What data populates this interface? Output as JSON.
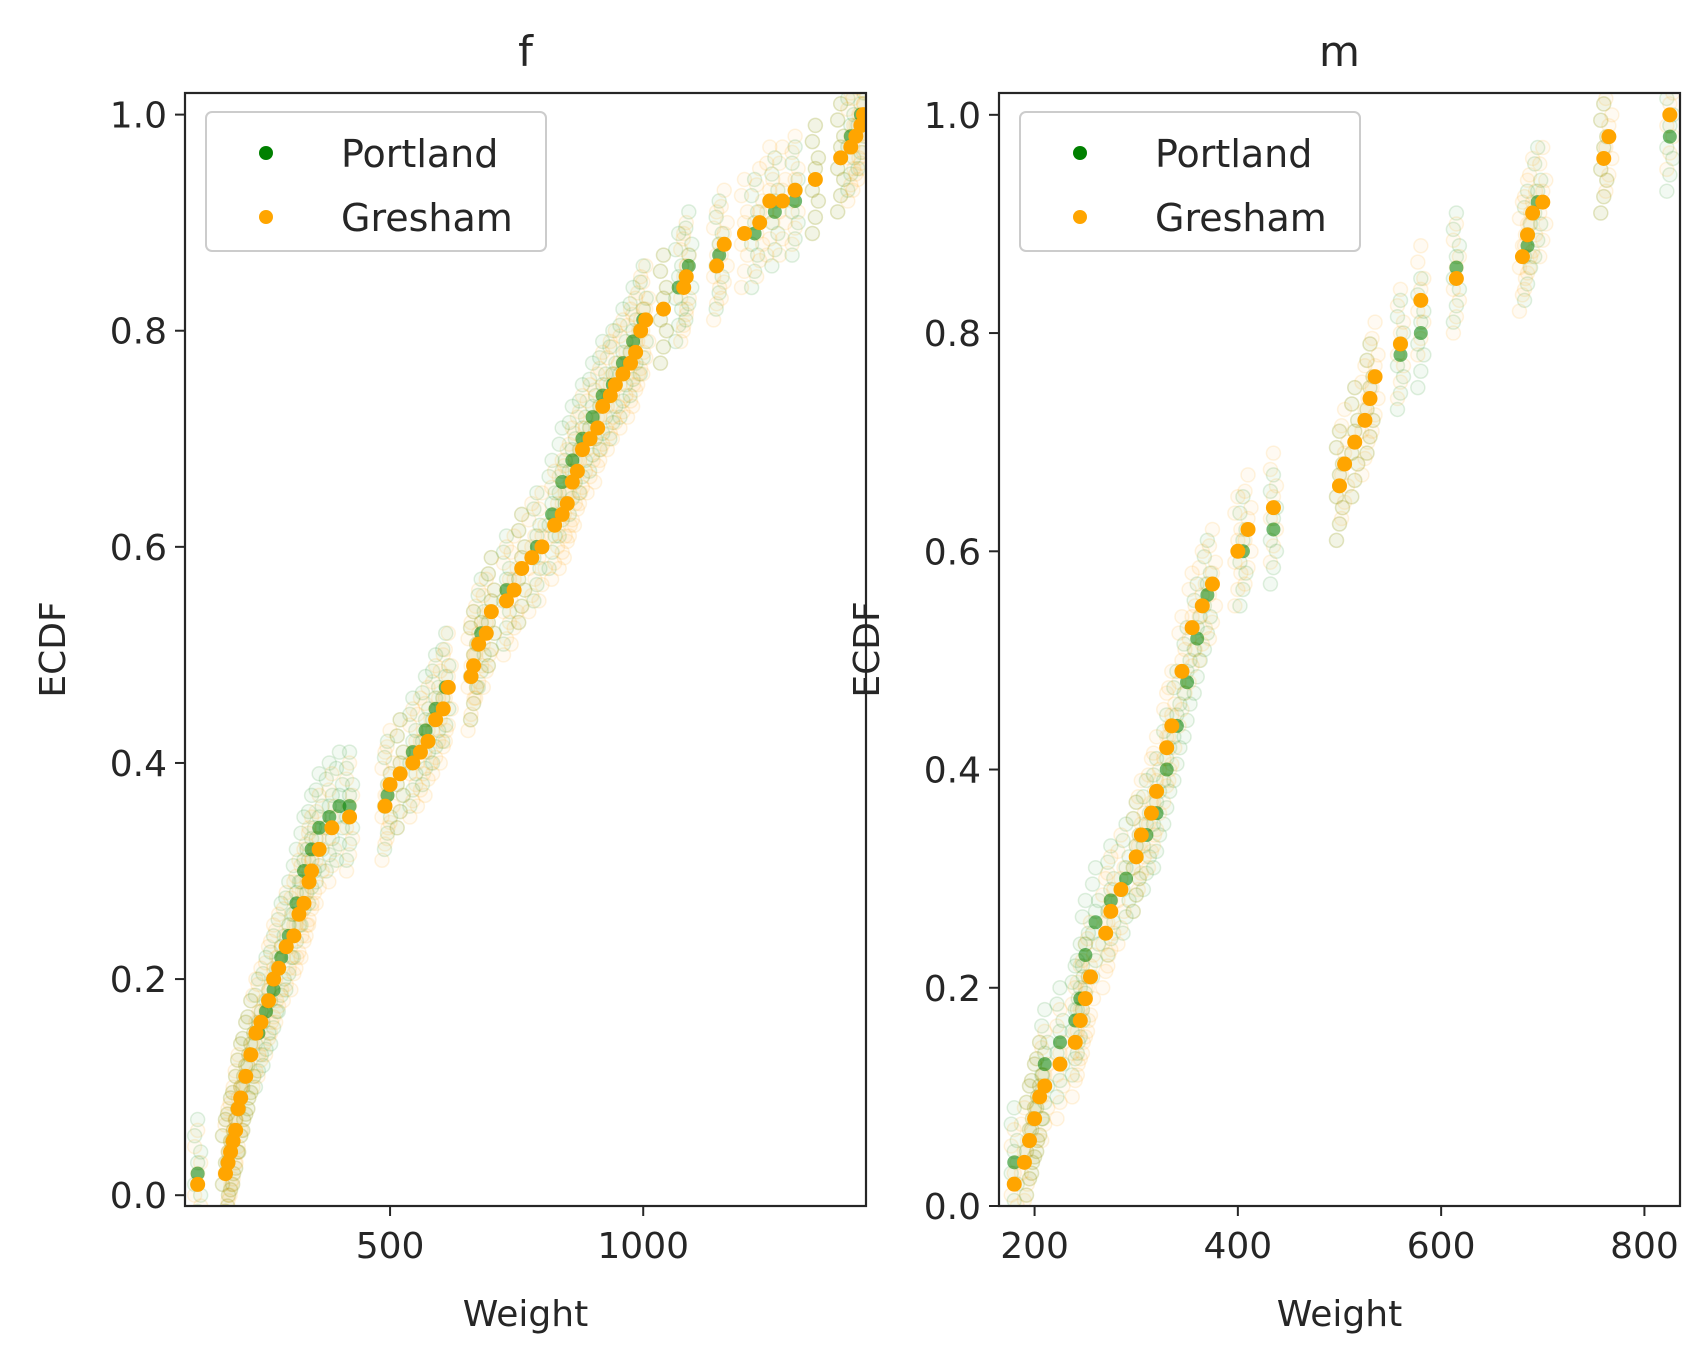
{
  "chart_data": [
    {
      "type": "scatter",
      "title": "f",
      "xlabel": "Weight",
      "ylabel": "ECDF",
      "xlim": [
        95,
        1440
      ],
      "ylim": [
        -0.01,
        1.02
      ],
      "x_ticks": [
        "500",
        "1000"
      ],
      "x_tick_values": [
        500,
        1000
      ],
      "y_ticks": [
        "0.0",
        "0.2",
        "0.4",
        "0.6",
        "0.8",
        "1.0"
      ],
      "y_tick_values": [
        0.0,
        0.2,
        0.4,
        0.6,
        0.8,
        1.0
      ],
      "grid": false,
      "legend_position": "upper-left",
      "series": [
        {
          "name": "Portland",
          "color": "#008000",
          "points": [
            [
              120,
              0.02
            ],
            [
              175,
              0.02
            ],
            [
              185,
              0.04
            ],
            [
              195,
              0.06
            ],
            [
              205,
              0.09
            ],
            [
              215,
              0.11
            ],
            [
              225,
              0.13
            ],
            [
              240,
              0.15
            ],
            [
              255,
              0.17
            ],
            [
              270,
              0.19
            ],
            [
              285,
              0.22
            ],
            [
              300,
              0.24
            ],
            [
              315,
              0.27
            ],
            [
              330,
              0.3
            ],
            [
              345,
              0.32
            ],
            [
              360,
              0.34
            ],
            [
              380,
              0.35
            ],
            [
              400,
              0.36
            ],
            [
              420,
              0.36
            ],
            [
              495,
              0.37
            ],
            [
              520,
              0.39
            ],
            [
              545,
              0.41
            ],
            [
              570,
              0.43
            ],
            [
              590,
              0.45
            ],
            [
              610,
              0.47
            ],
            [
              665,
              0.49
            ],
            [
              680,
              0.52
            ],
            [
              700,
              0.54
            ],
            [
              730,
              0.56
            ],
            [
              760,
              0.58
            ],
            [
              790,
              0.6
            ],
            [
              820,
              0.63
            ],
            [
              840,
              0.66
            ],
            [
              860,
              0.68
            ],
            [
              880,
              0.7
            ],
            [
              900,
              0.72
            ],
            [
              920,
              0.74
            ],
            [
              940,
              0.75
            ],
            [
              960,
              0.77
            ],
            [
              980,
              0.79
            ],
            [
              1000,
              0.81
            ],
            [
              1040,
              0.82
            ],
            [
              1070,
              0.84
            ],
            [
              1090,
              0.86
            ],
            [
              1150,
              0.87
            ],
            [
              1220,
              0.89
            ],
            [
              1260,
              0.91
            ],
            [
              1300,
              0.92
            ],
            [
              1340,
              0.94
            ],
            [
              1390,
              0.96
            ],
            [
              1410,
              0.98
            ],
            [
              1430,
              1.0
            ]
          ]
        },
        {
          "name": "Gresham",
          "color": "#FFA500",
          "points": [
            [
              120,
              0.01
            ],
            [
              175,
              0.02
            ],
            [
              180,
              0.03
            ],
            [
              185,
              0.04
            ],
            [
              190,
              0.05
            ],
            [
              195,
              0.06
            ],
            [
              200,
              0.08
            ],
            [
              205,
              0.09
            ],
            [
              215,
              0.11
            ],
            [
              225,
              0.13
            ],
            [
              235,
              0.15
            ],
            [
              245,
              0.16
            ],
            [
              260,
              0.18
            ],
            [
              270,
              0.2
            ],
            [
              280,
              0.21
            ],
            [
              295,
              0.23
            ],
            [
              310,
              0.24
            ],
            [
              320,
              0.26
            ],
            [
              330,
              0.27
            ],
            [
              340,
              0.29
            ],
            [
              345,
              0.3
            ],
            [
              360,
              0.32
            ],
            [
              385,
              0.34
            ],
            [
              420,
              0.35
            ],
            [
              490,
              0.36
            ],
            [
              500,
              0.38
            ],
            [
              520,
              0.39
            ],
            [
              545,
              0.4
            ],
            [
              560,
              0.41
            ],
            [
              575,
              0.42
            ],
            [
              590,
              0.44
            ],
            [
              605,
              0.45
            ],
            [
              615,
              0.47
            ],
            [
              660,
              0.48
            ],
            [
              665,
              0.49
            ],
            [
              675,
              0.51
            ],
            [
              690,
              0.52
            ],
            [
              700,
              0.54
            ],
            [
              730,
              0.55
            ],
            [
              745,
              0.56
            ],
            [
              760,
              0.58
            ],
            [
              780,
              0.59
            ],
            [
              800,
              0.6
            ],
            [
              825,
              0.62
            ],
            [
              840,
              0.63
            ],
            [
              850,
              0.64
            ],
            [
              860,
              0.66
            ],
            [
              870,
              0.67
            ],
            [
              880,
              0.69
            ],
            [
              895,
              0.7
            ],
            [
              910,
              0.71
            ],
            [
              920,
              0.73
            ],
            [
              935,
              0.74
            ],
            [
              945,
              0.75
            ],
            [
              960,
              0.76
            ],
            [
              975,
              0.77
            ],
            [
              985,
              0.78
            ],
            [
              995,
              0.8
            ],
            [
              1005,
              0.81
            ],
            [
              1040,
              0.82
            ],
            [
              1080,
              0.84
            ],
            [
              1085,
              0.85
            ],
            [
              1145,
              0.86
            ],
            [
              1160,
              0.88
            ],
            [
              1200,
              0.89
            ],
            [
              1230,
              0.9
            ],
            [
              1250,
              0.92
            ],
            [
              1275,
              0.92
            ],
            [
              1300,
              0.93
            ],
            [
              1340,
              0.94
            ],
            [
              1390,
              0.96
            ],
            [
              1410,
              0.97
            ],
            [
              1420,
              0.98
            ],
            [
              1430,
              0.99
            ],
            [
              1435,
              1.0
            ]
          ]
        }
      ]
    },
    {
      "type": "scatter",
      "title": "m",
      "xlabel": "Weight",
      "ylabel": "ECDF",
      "xlim": [
        165,
        835
      ],
      "ylim": [
        0.0,
        1.02
      ],
      "x_ticks": [
        "200",
        "400",
        "600",
        "800"
      ],
      "x_tick_values": [
        200,
        400,
        600,
        800
      ],
      "y_ticks": [
        "0.0",
        "0.2",
        "0.4",
        "0.6",
        "0.8",
        "1.0"
      ],
      "y_tick_values": [
        0.0,
        0.2,
        0.4,
        0.6,
        0.8,
        1.0
      ],
      "grid": false,
      "legend_position": "upper-left",
      "series": [
        {
          "name": "Portland",
          "color": "#008000",
          "points": [
            [
              180,
              0.04
            ],
            [
              195,
              0.06
            ],
            [
              200,
              0.08
            ],
            [
              205,
              0.1
            ],
            [
              210,
              0.13
            ],
            [
              225,
              0.15
            ],
            [
              240,
              0.17
            ],
            [
              245,
              0.19
            ],
            [
              250,
              0.23
            ],
            [
              260,
              0.26
            ],
            [
              275,
              0.28
            ],
            [
              290,
              0.3
            ],
            [
              300,
              0.32
            ],
            [
              310,
              0.34
            ],
            [
              320,
              0.36
            ],
            [
              330,
              0.4
            ],
            [
              340,
              0.44
            ],
            [
              350,
              0.48
            ],
            [
              360,
              0.52
            ],
            [
              370,
              0.56
            ],
            [
              405,
              0.6
            ],
            [
              435,
              0.62
            ],
            [
              500,
              0.66
            ],
            [
              515,
              0.7
            ],
            [
              530,
              0.74
            ],
            [
              560,
              0.78
            ],
            [
              580,
              0.8
            ],
            [
              615,
              0.86
            ],
            [
              685,
              0.88
            ],
            [
              695,
              0.92
            ],
            [
              760,
              0.96
            ],
            [
              825,
              0.98
            ]
          ]
        },
        {
          "name": "Gresham",
          "color": "#FFA500",
          "points": [
            [
              180,
              0.02
            ],
            [
              190,
              0.04
            ],
            [
              195,
              0.06
            ],
            [
              200,
              0.08
            ],
            [
              205,
              0.1
            ],
            [
              210,
              0.11
            ],
            [
              225,
              0.13
            ],
            [
              240,
              0.15
            ],
            [
              245,
              0.17
            ],
            [
              250,
              0.19
            ],
            [
              255,
              0.21
            ],
            [
              270,
              0.25
            ],
            [
              275,
              0.27
            ],
            [
              285,
              0.29
            ],
            [
              300,
              0.32
            ],
            [
              305,
              0.34
            ],
            [
              315,
              0.36
            ],
            [
              320,
              0.38
            ],
            [
              330,
              0.42
            ],
            [
              335,
              0.44
            ],
            [
              345,
              0.49
            ],
            [
              355,
              0.53
            ],
            [
              365,
              0.55
            ],
            [
              375,
              0.57
            ],
            [
              400,
              0.6
            ],
            [
              410,
              0.62
            ],
            [
              435,
              0.64
            ],
            [
              500,
              0.66
            ],
            [
              505,
              0.68
            ],
            [
              515,
              0.7
            ],
            [
              525,
              0.72
            ],
            [
              530,
              0.74
            ],
            [
              535,
              0.76
            ],
            [
              560,
              0.79
            ],
            [
              580,
              0.83
            ],
            [
              615,
              0.85
            ],
            [
              680,
              0.87
            ],
            [
              685,
              0.89
            ],
            [
              690,
              0.91
            ],
            [
              700,
              0.92
            ],
            [
              760,
              0.96
            ],
            [
              765,
              0.98
            ],
            [
              825,
              1.0
            ]
          ]
        }
      ]
    }
  ]
}
